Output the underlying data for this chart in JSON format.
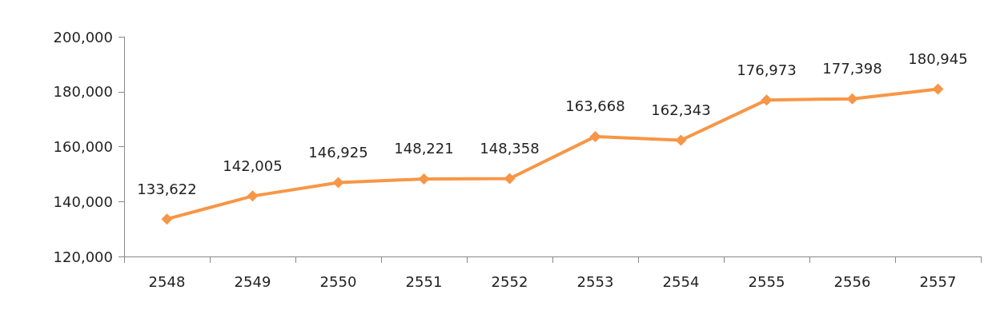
{
  "chart_data": {
    "type": "line",
    "categories": [
      "2548",
      "2549",
      "2550",
      "2551",
      "2552",
      "2553",
      "2554",
      "2555",
      "2556",
      "2557"
    ],
    "series": [
      {
        "color": "#f79646",
        "values": [
          133622,
          142005,
          146925,
          148221,
          148358,
          163668,
          162343,
          176973,
          177398,
          180945
        ],
        "value_labels": [
          "133,622",
          "142,005",
          "146,925",
          "148,221",
          "148,358",
          "163,668",
          "162,343",
          "176,973",
          "177,398",
          "180,945"
        ]
      }
    ],
    "ylim": [
      120000,
      200000
    ],
    "yticks": [
      {
        "value": 120000,
        "label": "120,000"
      },
      {
        "value": 140000,
        "label": "140,000"
      },
      {
        "value": 160000,
        "label": "160,000"
      },
      {
        "value": 180000,
        "label": "180,000"
      },
      {
        "value": 200000,
        "label": "200,000"
      }
    ],
    "grid": false,
    "marker": "diamond",
    "line_style": "solid"
  }
}
